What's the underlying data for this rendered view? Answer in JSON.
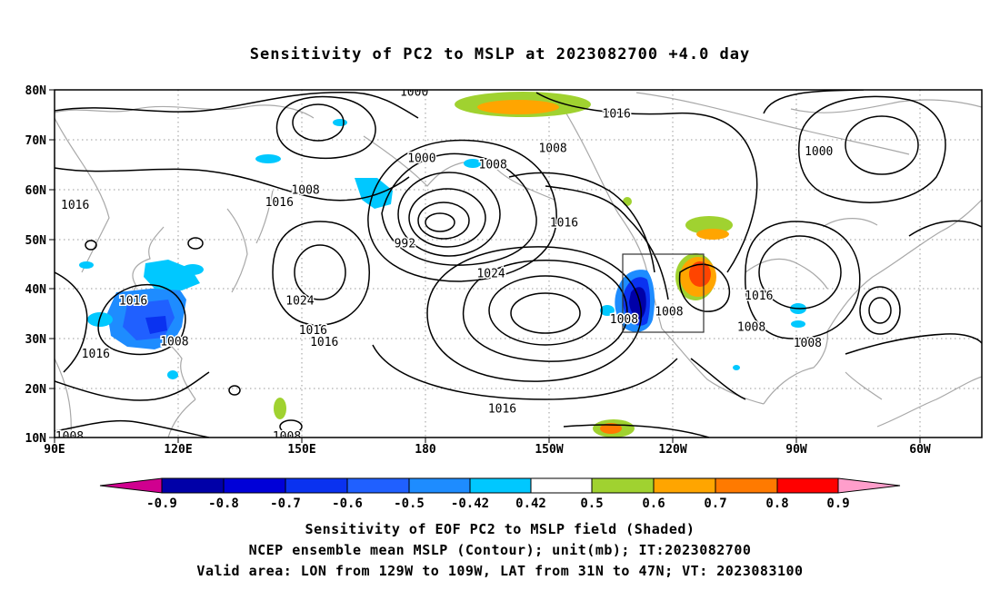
{
  "title": "Sensitivity of PC2 to MSLP at 2023082700 +4.0 day",
  "lat_labels": [
    "80N",
    "70N",
    "60N",
    "50N",
    "40N",
    "30N",
    "20N",
    "10N"
  ],
  "lon_labels": [
    "90E",
    "120E",
    "150E",
    "180",
    "150W",
    "120W",
    "90W",
    "60W"
  ],
  "contour_labels": [
    {
      "text": "1000",
      "lon": -174,
      "lat": 79.5
    },
    {
      "text": "1016",
      "lon": -120,
      "lat": 75.2
    },
    {
      "text": "1000",
      "lon": -66,
      "lat": 67.6
    },
    {
      "text": "1016",
      "lon": 95.5,
      "lat": 56.8
    },
    {
      "text": "1008",
      "lon": 157,
      "lat": 59.8
    },
    {
      "text": "1000",
      "lon": -172,
      "lat": 66.2
    },
    {
      "text": "1008",
      "lon": -153,
      "lat": 64.9
    },
    {
      "text": "1008",
      "lon": -137,
      "lat": 68.2
    },
    {
      "text": "1016",
      "lon": 150,
      "lat": 57.3
    },
    {
      "text": "1016",
      "lon": -134,
      "lat": 53.2
    },
    {
      "text": "992",
      "lon": -176.5,
      "lat": 49.0
    },
    {
      "text": "1024",
      "lon": -153.5,
      "lat": 43.0
    },
    {
      "text": "1024",
      "lon": 155.5,
      "lat": 37.5
    },
    {
      "text": "1016",
      "lon": 111,
      "lat": 37.5
    },
    {
      "text": "1008",
      "lon": -118,
      "lat": 33.8
    },
    {
      "text": "1008",
      "lon": -106,
      "lat": 35.3
    },
    {
      "text": "1016",
      "lon": -82,
      "lat": 38.5
    },
    {
      "text": "1008",
      "lon": -84,
      "lat": 32.2
    },
    {
      "text": "1008",
      "lon": -69,
      "lat": 29.0
    },
    {
      "text": "1016",
      "lon": 159,
      "lat": 31.6
    },
    {
      "text": "1016",
      "lon": 162,
      "lat": 29.2
    },
    {
      "text": "1008",
      "lon": 122,
      "lat": 29.3
    },
    {
      "text": "1016",
      "lon": 101,
      "lat": 26.8
    },
    {
      "text": "1016",
      "lon": -150.5,
      "lat": 15.8
    },
    {
      "text": "1008",
      "lon": 94,
      "lat": 10.2
    },
    {
      "text": "1008",
      "lon": 152,
      "lat": 10.2
    }
  ],
  "valid_area": {
    "lon": [
      -129,
      -109
    ],
    "lat": [
      31,
      47
    ]
  },
  "colorbar": {
    "colors": [
      "#d0008f",
      "#0000a8",
      "#0000d8",
      "#0a32f0",
      "#2060ff",
      "#1e8cff",
      "#00c8ff",
      "#ffffff",
      "#a0d230",
      "#ffa500",
      "#ff7a00",
      "#ff4400",
      "#ff0000",
      "#ff9ecb"
    ],
    "labels": [
      "-0.9",
      "-0.8",
      "-0.7",
      "-0.6",
      "-0.5",
      "-0.42",
      "0.42",
      "0.5",
      "0.6",
      "0.7",
      "0.8",
      "0.9"
    ]
  },
  "caption_lines": [
    "Sensitivity of EOF PC2 to MSLP field (Shaded)",
    "NCEP ensemble mean MSLP (Contour); unit(mb); IT:2023082700",
    "Valid area: LON from 129W to 109W, LAT from 31N to 47N; VT: 2023083100"
  ]
}
